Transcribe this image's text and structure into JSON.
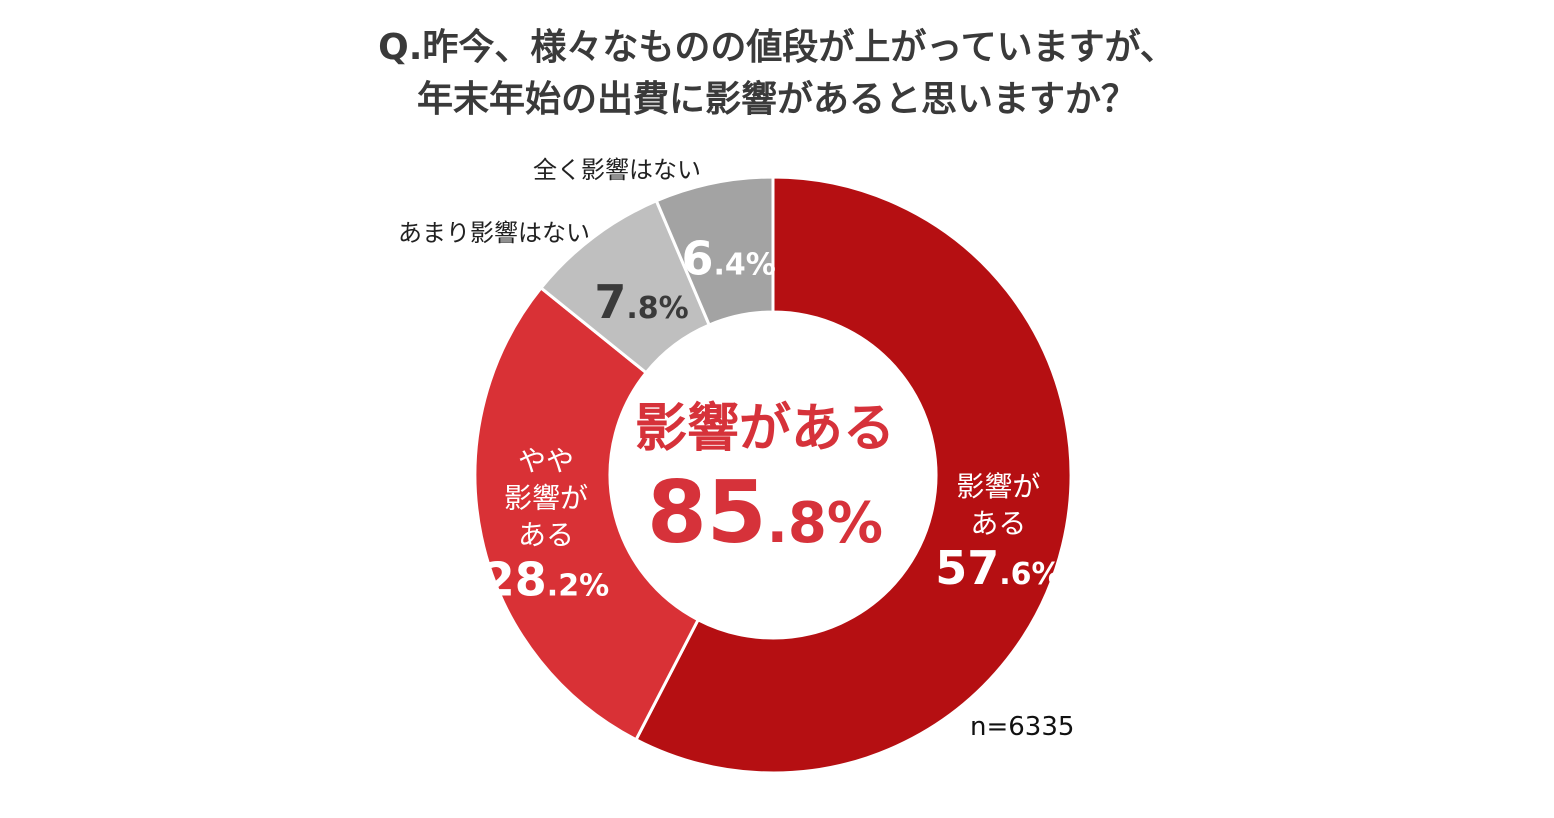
{
  "title": {
    "line1": "Q.昨今、様々なものの値段が上がっていますが、",
    "line2": "年末年始の出費に影響があると思いますか？"
  },
  "center": {
    "label": "影響がある",
    "value_int": "85",
    "value_dec": ".8%"
  },
  "sample": "n=6335",
  "chart_data": {
    "type": "pie",
    "title": "Q.昨今、様々なものの値段が上がっていますが、年末年始の出費に影響があると思いますか？",
    "categories": [
      "影響がある",
      "やや影響がある",
      "あまり影響はない",
      "全く影響はない"
    ],
    "values": [
      57.6,
      28.2,
      7.8,
      6.4
    ],
    "unit": "%",
    "total_affected": 85.8,
    "sample_size": 6335,
    "colors": [
      "#b50f12",
      "#d93136",
      "#bfbfbf",
      "#a3a3a3"
    ],
    "slice_labels": [
      {
        "lines": [
          "影響が",
          "ある"
        ],
        "value_int": "57",
        "value_dec": ".6%"
      },
      {
        "lines": [
          "やや",
          "影響が",
          "ある"
        ],
        "value_int": "28",
        "value_dec": ".2%"
      },
      {
        "lines": [],
        "value_int": "7",
        "value_dec": ".8%"
      },
      {
        "lines": [],
        "value_int": "6",
        "value_dec": ".4%"
      }
    ],
    "external_labels": [
      "",
      "",
      "あまり影響はない",
      "全く影響はない"
    ]
  }
}
